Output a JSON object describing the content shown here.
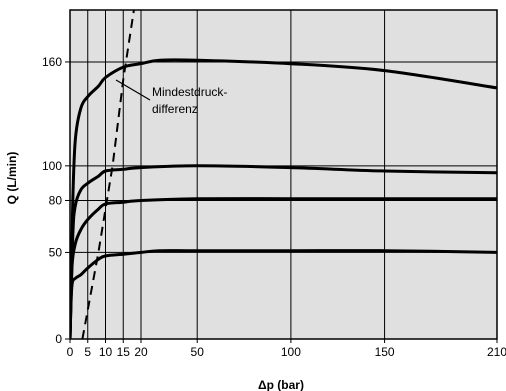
{
  "chart_data": {
    "type": "line",
    "title": "",
    "xlabel": "Δp (bar)",
    "ylabel": "Q (L/min)",
    "xlim": [
      0,
      210
    ],
    "ylim": [
      0,
      190
    ],
    "x_tick_labels": [
      "0",
      "5",
      "10",
      "15",
      "20",
      "50",
      "100",
      "150",
      "210"
    ],
    "x_tick_values": [
      0,
      5,
      10,
      15,
      20,
      50,
      100,
      150,
      210
    ],
    "y_tick_labels": [
      "0",
      "50",
      "80",
      "100",
      "160"
    ],
    "y_tick_values": [
      0,
      50,
      80,
      100,
      160
    ],
    "x_axis_scale": "piecewise: 0–20 expanded, 20–210 linear",
    "grid": true,
    "background_color": "#e0e0e0",
    "line_color": "#000000",
    "annotation": {
      "line1": "Mindestdruck-",
      "line2": "differenz",
      "points_to": {
        "x": 15,
        "y": 150
      }
    },
    "series": [
      {
        "style": "solid",
        "points": [
          [
            0,
            0
          ],
          [
            0.8,
            80
          ],
          [
            1.5,
            115
          ],
          [
            3,
            133
          ],
          [
            5,
            140
          ],
          [
            8,
            146
          ],
          [
            10,
            151
          ],
          [
            15,
            157
          ],
          [
            20,
            159
          ],
          [
            30,
            161
          ],
          [
            50,
            161
          ],
          [
            100,
            159
          ],
          [
            150,
            155
          ],
          [
            210,
            145
          ]
        ]
      },
      {
        "style": "solid",
        "points": [
          [
            0,
            0
          ],
          [
            0.8,
            60
          ],
          [
            1.5,
            77
          ],
          [
            3,
            86
          ],
          [
            5,
            90
          ],
          [
            8,
            94
          ],
          [
            10,
            97
          ],
          [
            15,
            98
          ],
          [
            20,
            99
          ],
          [
            50,
            100
          ],
          [
            100,
            99
          ],
          [
            150,
            97
          ],
          [
            210,
            96
          ]
        ]
      },
      {
        "style": "solid",
        "points": [
          [
            0,
            0
          ],
          [
            0.5,
            40
          ],
          [
            1.5,
            55
          ],
          [
            3,
            63
          ],
          [
            5,
            69
          ],
          [
            8,
            75
          ],
          [
            10,
            78
          ],
          [
            15,
            79
          ],
          [
            20,
            80
          ],
          [
            50,
            81
          ],
          [
            100,
            81
          ],
          [
            150,
            81
          ],
          [
            210,
            81
          ]
        ]
      },
      {
        "style": "solid",
        "points": [
          [
            0,
            0
          ],
          [
            0.5,
            30
          ],
          [
            1.5,
            35
          ],
          [
            3,
            37
          ],
          [
            5,
            41
          ],
          [
            8,
            46
          ],
          [
            10,
            48
          ],
          [
            15,
            49
          ],
          [
            20,
            50
          ],
          [
            30,
            51
          ],
          [
            50,
            51
          ],
          [
            100,
            51
          ],
          [
            150,
            51
          ],
          [
            210,
            50
          ]
        ]
      },
      {
        "style": "dashed",
        "name_ref": "annotation",
        "points": [
          [
            3.5,
            0
          ],
          [
            8,
            50
          ],
          [
            10,
            75
          ],
          [
            12,
            100
          ],
          [
            15,
            150
          ],
          [
            18,
            190
          ]
        ]
      }
    ]
  }
}
